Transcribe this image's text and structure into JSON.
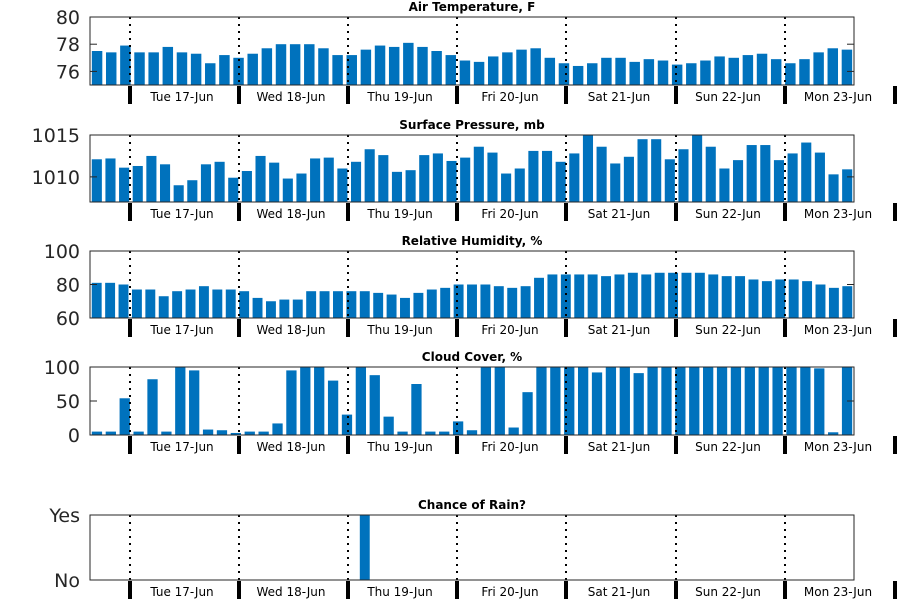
{
  "days": [
    "Tue 17-Jun",
    "Wed 18-Jun",
    "Thu 19-Jun",
    "Fri 20-Jun",
    "Sat 21-Jun",
    "Sun 22-Jun",
    "Mon 23-Jun"
  ],
  "bar_color": "#0072bd",
  "chart_data": [
    {
      "type": "bar",
      "title": "Air Temperature, F",
      "ylim": [
        75,
        80
      ],
      "yticks": [
        76,
        78,
        80
      ],
      "values": [
        77.5,
        77.4,
        77.9,
        77.4,
        77.4,
        77.8,
        77.4,
        77.3,
        76.6,
        77.2,
        77.0,
        77.3,
        77.7,
        78.0,
        78.0,
        78.0,
        77.7,
        77.2,
        77.2,
        77.6,
        77.9,
        77.8,
        78.1,
        77.8,
        77.5,
        77.2,
        76.8,
        76.7,
        77.1,
        77.4,
        77.6,
        77.7,
        77.0,
        76.6,
        76.4,
        76.6,
        77.0,
        77.0,
        76.7,
        76.9,
        76.8,
        76.5,
        76.6,
        76.8,
        77.1,
        77.0,
        77.2,
        77.3,
        76.9,
        76.6,
        76.9,
        77.4,
        77.7,
        77.6
      ]
    },
    {
      "type": "bar",
      "title": "Surface Pressure, mb",
      "ylim": [
        1007,
        1015
      ],
      "yticks": [
        1010,
        1015
      ],
      "values": [
        1012.1,
        1012.2,
        1011.1,
        1011.3,
        1012.5,
        1011.5,
        1009.0,
        1009.6,
        1011.5,
        1011.8,
        1009.9,
        1010.7,
        1012.5,
        1011.7,
        1009.8,
        1010.4,
        1012.2,
        1012.3,
        1011.0,
        1011.8,
        1013.3,
        1012.6,
        1010.6,
        1010.8,
        1012.6,
        1012.8,
        1011.9,
        1012.3,
        1013.6,
        1012.9,
        1010.4,
        1011.0,
        1013.1,
        1013.1,
        1011.8,
        1012.8,
        1015.0,
        1013.6,
        1011.6,
        1012.4,
        1014.5,
        1014.5,
        1012.1,
        1013.3,
        1015.0,
        1013.6,
        1011.0,
        1012.0,
        1013.8,
        1013.8,
        1012.0,
        1012.8,
        1014.1,
        1012.9,
        1010.3,
        1010.9
      ]
    },
    {
      "type": "bar",
      "title": "Relative Humidity, %",
      "ylim": [
        60,
        100
      ],
      "yticks": [
        60,
        80,
        100
      ],
      "values": [
        81,
        81,
        80,
        77,
        77,
        73,
        76,
        77,
        79,
        77,
        77,
        76,
        72,
        70,
        71,
        71,
        76,
        76,
        76,
        76,
        76,
        75,
        74,
        72,
        75,
        77,
        78,
        80,
        80,
        80,
        79,
        78,
        79,
        84,
        86,
        86,
        86,
        86,
        85,
        86,
        87,
        86,
        87,
        87,
        87,
        87,
        86,
        85,
        85,
        83,
        82,
        83,
        83,
        82,
        80,
        78,
        79
      ]
    },
    {
      "type": "bar",
      "title": "Cloud Cover, %",
      "ylim": [
        0,
        100
      ],
      "yticks": [
        0,
        50,
        100
      ],
      "values": [
        5,
        5,
        54,
        5,
        82,
        5,
        100,
        95,
        8,
        7,
        3,
        5,
        5,
        17,
        95,
        100,
        100,
        80,
        30,
        100,
        88,
        27,
        5,
        75,
        5,
        5,
        20,
        7,
        100,
        100,
        11,
        63,
        100,
        100,
        100,
        100,
        92,
        100,
        100,
        91,
        100,
        100,
        100,
        100,
        100,
        100,
        100,
        100,
        100,
        100,
        100,
        100,
        98,
        4,
        100
      ]
    },
    {
      "type": "bar",
      "title": "Chance of Rain?",
      "ylim": [
        0,
        1
      ],
      "ytick_labels": [
        "No",
        "Yes"
      ],
      "values": [
        0,
        0,
        0,
        0,
        0,
        0,
        0,
        0,
        0,
        0,
        0,
        0,
        0,
        0,
        0,
        0,
        0,
        0,
        0,
        0,
        1,
        0,
        0,
        0,
        0,
        0,
        0,
        0,
        0,
        0,
        0,
        0,
        0,
        0,
        0,
        0,
        0,
        0,
        0,
        0,
        0,
        0,
        0,
        0,
        0,
        0,
        0,
        0,
        0,
        0,
        0,
        0,
        0,
        0,
        0,
        0,
        0
      ]
    }
  ]
}
